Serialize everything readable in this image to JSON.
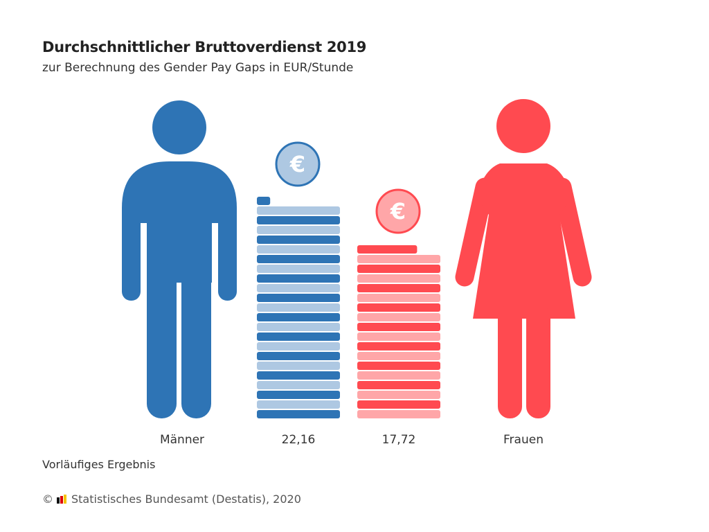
{
  "title": "Durchschnittlicher Bruttoverdienst 2019",
  "subtitle": "zur Berechnung des Gender Pay Gaps in EUR/Stunde",
  "note": "Vorläufiges Ergebnis",
  "source": {
    "copyright": "©",
    "text": "Statistisches Bundesamt (Destatis), 2020"
  },
  "colors": {
    "men_dark": "#2e74b5",
    "men_light": "#aec8e2",
    "women_dark": "#ff4a50",
    "women_light": "#ffa6a8"
  },
  "chart_data": {
    "type": "bar",
    "title": "Durchschnittlicher Bruttoverdienst 2019",
    "ylabel": "EUR/Stunde",
    "categories": [
      "Männer",
      "Frauen"
    ],
    "values": [
      22.16,
      17.72
    ],
    "value_labels": [
      "22,16",
      "17,72"
    ],
    "currency_symbol": "€"
  }
}
